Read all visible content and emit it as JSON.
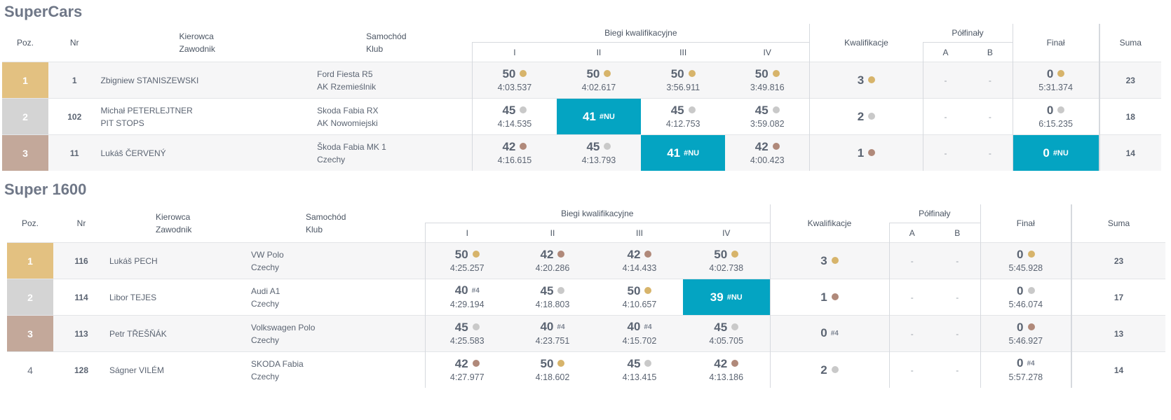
{
  "sections": [
    {
      "title": "SuperCars",
      "headers": {
        "pos": "Poz.",
        "nr": "Nr",
        "driver_1": "Kierowca",
        "driver_2": "Zawodnik",
        "car_1": "Samochód",
        "car_2": "Klub",
        "heats": "Biegi kwalifikacyjne",
        "heat_names": [
          "I",
          "II",
          "III",
          "IV"
        ],
        "qual": "Kwalifikacje",
        "semi": "Półfinały",
        "semi_a": "A",
        "semi_b": "B",
        "final": "Finał",
        "sum": "Suma"
      },
      "rows": [
        {
          "pos": "1",
          "nr": "1",
          "driver": "Zbigniew STANISZEWSKI",
          "team": "",
          "car": "Ford Fiesta R5",
          "club": "AK Rzemieślnik",
          "heats": [
            {
              "pts": "50",
              "time": "4:03.537",
              "medal": "gold",
              "tag": ""
            },
            {
              "pts": "50",
              "time": "4:02.617",
              "medal": "gold",
              "tag": ""
            },
            {
              "pts": "50",
              "time": "3:56.911",
              "medal": "gold",
              "tag": ""
            },
            {
              "pts": "50",
              "time": "3:49.816",
              "medal": "gold",
              "tag": ""
            }
          ],
          "qual": {
            "pts": "3",
            "medal": "gold",
            "tag": ""
          },
          "semi_a": "-",
          "semi_b": "-",
          "final": {
            "pts": "0",
            "time": "5:31.374",
            "medal": "gold",
            "tag": ""
          },
          "sum": "23"
        },
        {
          "pos": "2",
          "nr": "102",
          "driver": "Michał PETERLEJTNER",
          "team": "PIT STOPS",
          "car": "Skoda Fabia RX",
          "club": "AK Nowomiejski",
          "heats": [
            {
              "pts": "45",
              "time": "4:14.535",
              "medal": "silver",
              "tag": ""
            },
            {
              "pts": "41",
              "time": "",
              "medal": "",
              "tag": "#NU"
            },
            {
              "pts": "45",
              "time": "4:12.753",
              "medal": "silver",
              "tag": ""
            },
            {
              "pts": "45",
              "time": "3:59.082",
              "medal": "silver",
              "tag": ""
            }
          ],
          "qual": {
            "pts": "2",
            "medal": "silver",
            "tag": ""
          },
          "semi_a": "-",
          "semi_b": "-",
          "final": {
            "pts": "0",
            "time": "6:15.235",
            "medal": "silver",
            "tag": ""
          },
          "sum": "18"
        },
        {
          "pos": "3",
          "nr": "11",
          "driver": "Lukáš ČERVENÝ",
          "team": "",
          "car": "Škoda Fabia MK 1",
          "club": "Czechy",
          "heats": [
            {
              "pts": "42",
              "time": "4:16.615",
              "medal": "bronze",
              "tag": ""
            },
            {
              "pts": "45",
              "time": "4:13.793",
              "medal": "silver",
              "tag": ""
            },
            {
              "pts": "41",
              "time": "",
              "medal": "",
              "tag": "#NU"
            },
            {
              "pts": "42",
              "time": "4:00.423",
              "medal": "bronze",
              "tag": ""
            }
          ],
          "qual": {
            "pts": "1",
            "medal": "bronze",
            "tag": ""
          },
          "semi_a": "-",
          "semi_b": "-",
          "final": {
            "pts": "0",
            "time": "",
            "medal": "",
            "tag": "#NU"
          },
          "sum": "14"
        }
      ]
    },
    {
      "title": "Super 1600",
      "headers": {
        "pos": "Poz.",
        "nr": "Nr",
        "driver_1": "Kierowca",
        "driver_2": "Zawodnik",
        "car_1": "Samochód",
        "car_2": "Klub",
        "heats": "Biegi kwalifikacyjne",
        "heat_names": [
          "I",
          "II",
          "III",
          "IV"
        ],
        "qual": "Kwalifikacje",
        "semi": "Półfinały",
        "semi_a": "A",
        "semi_b": "B",
        "final": "Finał",
        "sum": "Suma"
      },
      "rows": [
        {
          "pos": "1",
          "nr": "116",
          "driver": "Lukáš PECH",
          "team": "",
          "car": "VW Polo",
          "club": "Czechy",
          "heats": [
            {
              "pts": "50",
              "time": "4:25.257",
              "medal": "gold",
              "tag": ""
            },
            {
              "pts": "42",
              "time": "4:20.286",
              "medal": "bronze",
              "tag": ""
            },
            {
              "pts": "42",
              "time": "4:14.433",
              "medal": "bronze",
              "tag": ""
            },
            {
              "pts": "50",
              "time": "4:02.738",
              "medal": "gold",
              "tag": ""
            }
          ],
          "qual": {
            "pts": "3",
            "medal": "gold",
            "tag": ""
          },
          "semi_a": "-",
          "semi_b": "-",
          "final": {
            "pts": "0",
            "time": "5:45.928",
            "medal": "gold",
            "tag": ""
          },
          "sum": "23"
        },
        {
          "pos": "2",
          "nr": "114",
          "driver": "Libor TEJES",
          "team": "",
          "car": "Audi A1",
          "club": "Czechy",
          "heats": [
            {
              "pts": "40",
              "time": "4:29.194",
              "medal": "",
              "tag": "#4"
            },
            {
              "pts": "45",
              "time": "4:18.803",
              "medal": "silver",
              "tag": ""
            },
            {
              "pts": "50",
              "time": "4:10.657",
              "medal": "gold",
              "tag": ""
            },
            {
              "pts": "39",
              "time": "",
              "medal": "",
              "tag": "#NU"
            }
          ],
          "qual": {
            "pts": "1",
            "medal": "bronze",
            "tag": ""
          },
          "semi_a": "-",
          "semi_b": "-",
          "final": {
            "pts": "0",
            "time": "5:46.074",
            "medal": "silver",
            "tag": ""
          },
          "sum": "17"
        },
        {
          "pos": "3",
          "nr": "113",
          "driver": "Petr TŘEŠŇÁK",
          "team": "",
          "car": "Volkswagen Polo",
          "club": "Czechy",
          "heats": [
            {
              "pts": "45",
              "time": "4:25.583",
              "medal": "silver",
              "tag": ""
            },
            {
              "pts": "40",
              "time": "4:23.751",
              "medal": "",
              "tag": "#4"
            },
            {
              "pts": "40",
              "time": "4:15.702",
              "medal": "",
              "tag": "#4"
            },
            {
              "pts": "45",
              "time": "4:05.705",
              "medal": "silver",
              "tag": ""
            }
          ],
          "qual": {
            "pts": "0",
            "medal": "",
            "tag": "#4"
          },
          "semi_a": "-",
          "semi_b": "-",
          "final": {
            "pts": "0",
            "time": "5:46.927",
            "medal": "bronze",
            "tag": ""
          },
          "sum": "13"
        },
        {
          "pos": "4",
          "nr": "128",
          "driver": "Ságner VILÉM",
          "team": "",
          "car": "SKODA Fabia",
          "club": "Czechy",
          "heats": [
            {
              "pts": "42",
              "time": "4:27.977",
              "medal": "bronze",
              "tag": ""
            },
            {
              "pts": "50",
              "time": "4:18.602",
              "medal": "gold",
              "tag": ""
            },
            {
              "pts": "45",
              "time": "4:13.415",
              "medal": "silver",
              "tag": ""
            },
            {
              "pts": "42",
              "time": "4:13.186",
              "medal": "bronze",
              "tag": ""
            }
          ],
          "qual": {
            "pts": "2",
            "medal": "silver",
            "tag": ""
          },
          "semi_a": "-",
          "semi_b": "-",
          "final": {
            "pts": "0",
            "time": "5:57.278",
            "medal": "",
            "tag": "#4"
          },
          "sum": "14"
        }
      ]
    }
  ]
}
